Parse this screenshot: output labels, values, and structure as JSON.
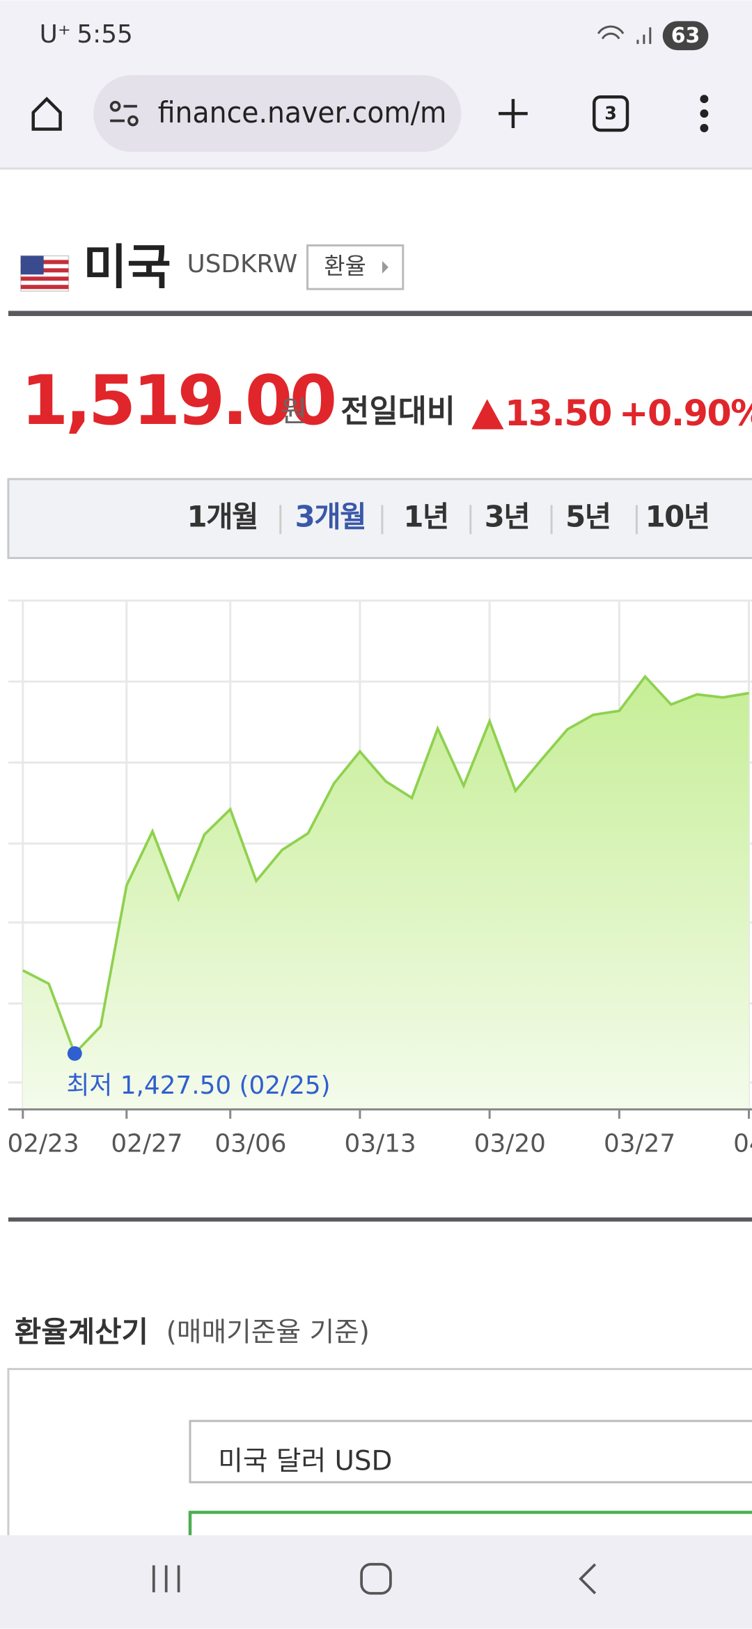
{
  "status_bar": {
    "carrier": "U⁺",
    "time": "5:55",
    "battery": "63"
  },
  "browser": {
    "url": "finance.naver.com/m",
    "tab_count": "3"
  },
  "header": {
    "country": "미국",
    "code": "USDKRW",
    "button": "환율"
  },
  "price": {
    "value": "1,519.00",
    "unit": "원",
    "change_label": "전일대비",
    "change": "13.50",
    "change_pct": "+0.90%"
  },
  "tabs": [
    "1개월",
    "3개월",
    "1년",
    "3년",
    "5년",
    "10년"
  ],
  "chart_data": {
    "type": "area",
    "color": "#8fd14f",
    "marker_color": "#2f5fd0",
    "categories": [
      "02/23",
      null,
      null,
      null,
      "02/27",
      null,
      null,
      null,
      "03/06",
      null,
      null,
      null,
      null,
      "03/13",
      null,
      null,
      null,
      null,
      "03/20",
      null,
      null,
      null,
      null,
      "03/27",
      null,
      null,
      null,
      null,
      "04"
    ],
    "values": [
      1448.6,
      1445.2,
      1427.5,
      1434.4,
      1470.2,
      1483.9,
      1466.8,
      1483.1,
      1489.5,
      1471.3,
      1479.2,
      1483.4,
      1496.1,
      1504.2,
      1496.6,
      1492.4,
      1510.0,
      1495.5,
      1511.9,
      1494.2,
      1502.1,
      1509.8,
      1513.5,
      1514.5,
      1523.2,
      1516.1,
      1518.7,
      1517.9,
      1519.0
    ],
    "ylim": [
      1413.3,
      1542.5
    ],
    "min_label": "최저 1,427.50 (02/25)"
  },
  "calculator": {
    "title": "환율계산기",
    "subtitle": "(매매기준율 기준)",
    "currency": "미국 달러 USD"
  }
}
